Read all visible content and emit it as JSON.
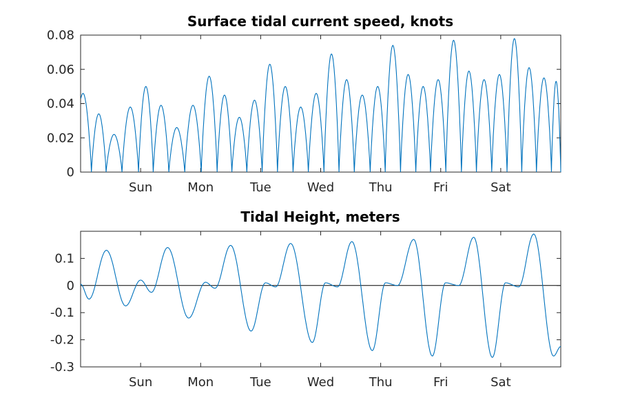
{
  "colors": {
    "series": "#0072bd",
    "axis": "#262626"
  },
  "chart_data": [
    {
      "type": "line",
      "title": "Surface tidal current speed, knots",
      "xlabel": "",
      "ylabel": "",
      "x_tick_labels": [
        "Sun",
        "Mon",
        "Tue",
        "Wed",
        "Thu",
        "Fri",
        "Sat"
      ],
      "x_ticks_days": [
        1,
        2,
        3,
        4,
        5,
        6,
        7
      ],
      "xlim_days": [
        0,
        8
      ],
      "ylim": [
        0,
        0.08
      ],
      "y_ticks": [
        0,
        0.02,
        0.04,
        0.06,
        0.08
      ],
      "y_tick_labels": [
        "0",
        "0.02",
        "0.04",
        "0.06",
        "0.08"
      ],
      "grid": false,
      "series": [
        {
          "name": "current speed",
          "x_days": [
            0.04,
            0.32,
            0.53,
            0.85,
            1.08,
            1.34,
            1.6,
            1.87,
            2.15,
            2.4,
            2.64,
            2.9,
            3.15,
            3.41,
            3.67,
            3.92,
            4.19,
            4.42,
            4.7,
            4.95,
            5.2,
            5.46,
            5.71,
            5.95,
            6.22,
            6.47,
            6.72,
            6.98,
            7.23,
            7.47,
            7.72,
            7.97
          ],
          "peaks": [
            0.046,
            0.034,
            0.022,
            0.038,
            0.05,
            0.039,
            0.026,
            0.039,
            0.056,
            0.045,
            0.032,
            0.042,
            0.063,
            0.05,
            0.038,
            0.046,
            0.069,
            0.054,
            0.045,
            0.05,
            0.074,
            0.057,
            0.05,
            0.054,
            0.077,
            0.059,
            0.054,
            0.057,
            0.078,
            0.061,
            0.055,
            0.053
          ]
        }
      ]
    },
    {
      "type": "line",
      "title": "Tidal Height, meters",
      "xlabel": "",
      "ylabel": "",
      "x_tick_labels": [
        "Sun",
        "Mon",
        "Tue",
        "Wed",
        "Thu",
        "Fri",
        "Sat"
      ],
      "x_ticks_days": [
        1,
        2,
        3,
        4,
        5,
        6,
        7
      ],
      "xlim_days": [
        0,
        8
      ],
      "ylim": [
        -0.3,
        0.2
      ],
      "y_ticks": [
        -0.3,
        -0.2,
        -0.1,
        0,
        0.1
      ],
      "y_tick_labels": [
        "-0.3",
        "-0.2",
        "-0.1",
        "0",
        "0.1"
      ],
      "reference_line_y": 0,
      "grid": false,
      "series": [
        {
          "name": "tidal height",
          "x_days": [
            0,
            0.14,
            0.43,
            0.75,
            1.0,
            1.18,
            1.45,
            1.8,
            2.08,
            2.24,
            2.5,
            2.84,
            3.08,
            3.25,
            3.5,
            3.86,
            4.08,
            4.28,
            4.52,
            4.86,
            5.08,
            5.28,
            5.55,
            5.86,
            6.08,
            6.3,
            6.55,
            6.86,
            7.08,
            7.3,
            7.55,
            7.88,
            8.0
          ],
          "y": [
            0.005,
            -0.05,
            0.13,
            -0.075,
            0.02,
            -0.025,
            0.14,
            -0.12,
            0.012,
            -0.01,
            0.148,
            -0.168,
            0.01,
            -0.005,
            0.155,
            -0.21,
            0.01,
            -0.005,
            0.162,
            -0.24,
            0.01,
            0.0,
            0.17,
            -0.26,
            0.01,
            0.0,
            0.178,
            -0.265,
            0.01,
            -0.005,
            0.19,
            -0.26,
            -0.225
          ]
        }
      ]
    }
  ]
}
